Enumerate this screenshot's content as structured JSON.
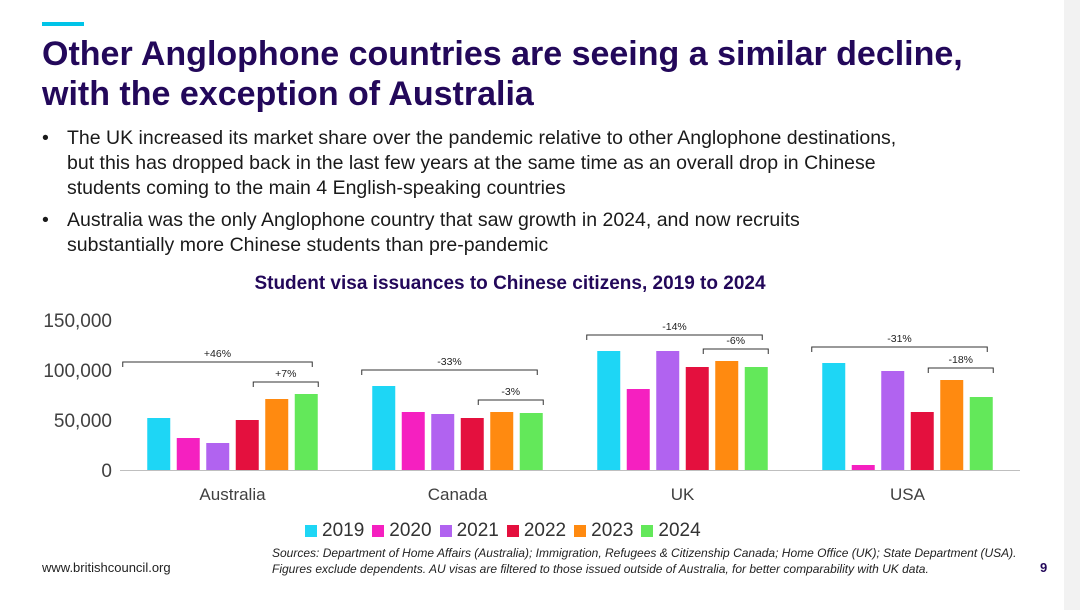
{
  "slide": {
    "title_lines": [
      "Other Anglophone countries are seeing a similar decline,",
      "with the exception of Australia"
    ],
    "bullets": [
      {
        "lines": [
          "The UK increased its market share over the pandemic relative to other Anglophone destinations,",
          "but this has dropped back in the last few years at the same time as an overall drop in Chinese",
          "students coming to the main 4 English-speaking countries"
        ]
      },
      {
        "lines": [
          "Australia was the only Anglophone country that saw growth in 2024, and now recruits",
          "substantially more Chinese students than pre-pandemic"
        ]
      }
    ],
    "website": "www.britishcouncil.org",
    "sources": "Sources: Department of Home Affairs (Australia); Immigration, Refugees & Citizenship Canada; Home Office (UK); State Department (USA). Figures exclude dependents. AU visas are filtered to those issued outside of Australia, for better comparability with UK data.",
    "page_number": "9",
    "colors": {
      "title": "#23085a",
      "accent": "#00c4e8"
    }
  },
  "chart_data": {
    "type": "bar",
    "title": "Student visa issuances to Chinese citizens, 2019 to 2024",
    "categories": [
      "Australia",
      "Canada",
      "UK",
      "USA"
    ],
    "series": [
      {
        "name": "2019",
        "color": "#1ed6f5",
        "values": [
          52000,
          84000,
          119000,
          107000
        ]
      },
      {
        "name": "2020",
        "color": "#f520c0",
        "values": [
          32000,
          58000,
          81000,
          5000
        ]
      },
      {
        "name": "2021",
        "color": "#b163f0",
        "values": [
          27000,
          56000,
          119000,
          99000
        ]
      },
      {
        "name": "2022",
        "color": "#e4103e",
        "values": [
          50000,
          52000,
          103000,
          58000
        ]
      },
      {
        "name": "2023",
        "color": "#ff8a10",
        "values": [
          71000,
          58000,
          109000,
          90000
        ]
      },
      {
        "name": "2024",
        "color": "#63e85a",
        "values": [
          76000,
          57000,
          103000,
          73000
        ]
      }
    ],
    "ylim": [
      0,
      150000
    ],
    "yticks": [
      0,
      50000,
      100000,
      150000
    ],
    "ytick_labels": [
      "0",
      "50,000",
      "100,000",
      "150,000"
    ],
    "annotations": [
      {
        "category": "Australia",
        "long_label": "+46%",
        "short_label": "+7%"
      },
      {
        "category": "Canada",
        "long_label": "-33%",
        "short_label": "-3%"
      },
      {
        "category": "UK",
        "long_label": "-14%",
        "short_label": "-6%"
      },
      {
        "category": "USA",
        "long_label": "-31%",
        "short_label": "-18%"
      }
    ]
  }
}
